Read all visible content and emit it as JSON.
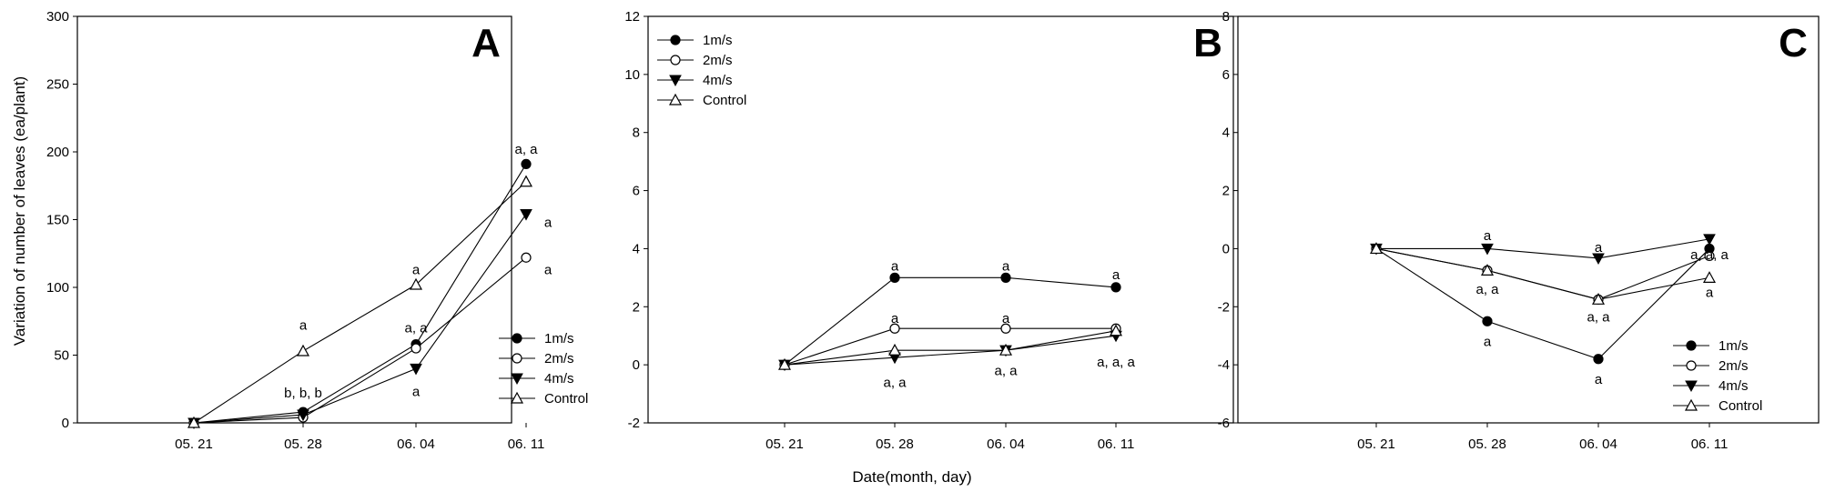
{
  "shared": {
    "xlabel": "Date(month, day)",
    "ylabel": "Variation of number of leaves (ea/plant)",
    "categories": [
      "05. 21",
      "05. 28",
      "06. 04",
      "06. 11"
    ]
  },
  "chart_data": [
    {
      "type": "line",
      "panel_label": "A",
      "categories": [
        "05. 21",
        "05. 28",
        "06. 04",
        "06. 11"
      ],
      "ylim": [
        0,
        300
      ],
      "yticks": [
        "0",
        "50",
        "100",
        "150",
        "200",
        "250",
        "300"
      ],
      "legend_position": "bottom-right",
      "series": [
        {
          "name": "1m/s",
          "marker": "filled-circle",
          "values": [
            0,
            8,
            58,
            191
          ]
        },
        {
          "name": "2m/s",
          "marker": "open-circle",
          "values": [
            0,
            4,
            55,
            122
          ]
        },
        {
          "name": "4m/s",
          "marker": "filled-triangle-down",
          "values": [
            0,
            6,
            40,
            154
          ]
        },
        {
          "name": "Control",
          "marker": "open-triangle-up",
          "values": [
            0,
            53,
            102,
            178
          ]
        }
      ],
      "annotations": [
        {
          "text": "a",
          "x": "05. 28",
          "y": 72
        },
        {
          "text": "b, b, b",
          "x": "05. 28",
          "y": 22
        },
        {
          "text": "a",
          "x": "06. 04",
          "y": 113
        },
        {
          "text": "a, a",
          "x": "06. 04",
          "y": 70
        },
        {
          "text": "a",
          "x": "06. 04",
          "y": 23
        },
        {
          "text": "a, a",
          "x": "06. 11",
          "y": 202
        },
        {
          "text": "a",
          "x": "06. 11",
          "y": 148
        },
        {
          "text": "a",
          "x": "06. 11",
          "y": 113
        }
      ]
    },
    {
      "type": "line",
      "panel_label": "B",
      "categories": [
        "05. 21",
        "05. 28",
        "06. 04",
        "06. 11"
      ],
      "ylim": [
        -2,
        12
      ],
      "yticks": [
        "-2",
        "0",
        "2",
        "4",
        "6",
        "8",
        "10",
        "12"
      ],
      "legend_position": "top-left",
      "series": [
        {
          "name": "1m/s",
          "marker": "filled-circle",
          "values": [
            0,
            3.0,
            3.0,
            2.67
          ]
        },
        {
          "name": "2m/s",
          "marker": "open-circle",
          "values": [
            0,
            1.25,
            1.25,
            1.25
          ]
        },
        {
          "name": "4m/s",
          "marker": "filled-triangle-down",
          "values": [
            0,
            0.25,
            0.5,
            1.0
          ]
        },
        {
          "name": "Control",
          "marker": "open-triangle-up",
          "values": [
            0,
            0.5,
            0.5,
            1.17
          ]
        }
      ],
      "annotations": [
        {
          "text": "a",
          "x": "05. 28",
          "y": 3.4
        },
        {
          "text": "a",
          "x": "05. 28",
          "y": 1.6
        },
        {
          "text": "a, a",
          "x": "05. 28",
          "y": -0.6
        },
        {
          "text": "a",
          "x": "06. 04",
          "y": 3.4
        },
        {
          "text": "a",
          "x": "06. 04",
          "y": 1.6
        },
        {
          "text": "a, a",
          "x": "06. 04",
          "y": -0.2
        },
        {
          "text": "a",
          "x": "06. 11",
          "y": 3.1
        },
        {
          "text": "a, a, a",
          "x": "06. 11",
          "y": 0.1
        }
      ]
    },
    {
      "type": "line",
      "panel_label": "C",
      "categories": [
        "05. 21",
        "05. 28",
        "06. 04",
        "06. 11"
      ],
      "ylim": [
        -6,
        8
      ],
      "yticks": [
        "-6",
        "-4",
        "-2",
        "0",
        "2",
        "4",
        "6",
        "8"
      ],
      "legend_position": "bottom-right",
      "series": [
        {
          "name": "1m/s",
          "marker": "filled-circle",
          "values": [
            0,
            -2.5,
            -3.8,
            0
          ]
        },
        {
          "name": "2m/s",
          "marker": "open-circle",
          "values": [
            0,
            -0.75,
            -1.75,
            -0.25
          ]
        },
        {
          "name": "4m/s",
          "marker": "filled-triangle-down",
          "values": [
            0,
            0,
            -0.33,
            0.33
          ]
        },
        {
          "name": "Control",
          "marker": "open-triangle-up",
          "values": [
            0,
            -0.75,
            -1.75,
            -1.0
          ]
        }
      ],
      "annotations": [
        {
          "text": "a",
          "x": "05. 28",
          "y": 0.45
        },
        {
          "text": "a, a",
          "x": "05. 28",
          "y": -1.4
        },
        {
          "text": "a",
          "x": "05. 28",
          "y": -3.2
        },
        {
          "text": "a",
          "x": "06. 04",
          "y": 0.05
        },
        {
          "text": "a, a",
          "x": "06. 04",
          "y": -2.35
        },
        {
          "text": "a",
          "x": "06. 04",
          "y": -4.5
        },
        {
          "text": "a, a, a",
          "x": "06. 11",
          "y": -0.2
        },
        {
          "text": "a",
          "x": "06. 11",
          "y": -1.5
        }
      ]
    }
  ]
}
